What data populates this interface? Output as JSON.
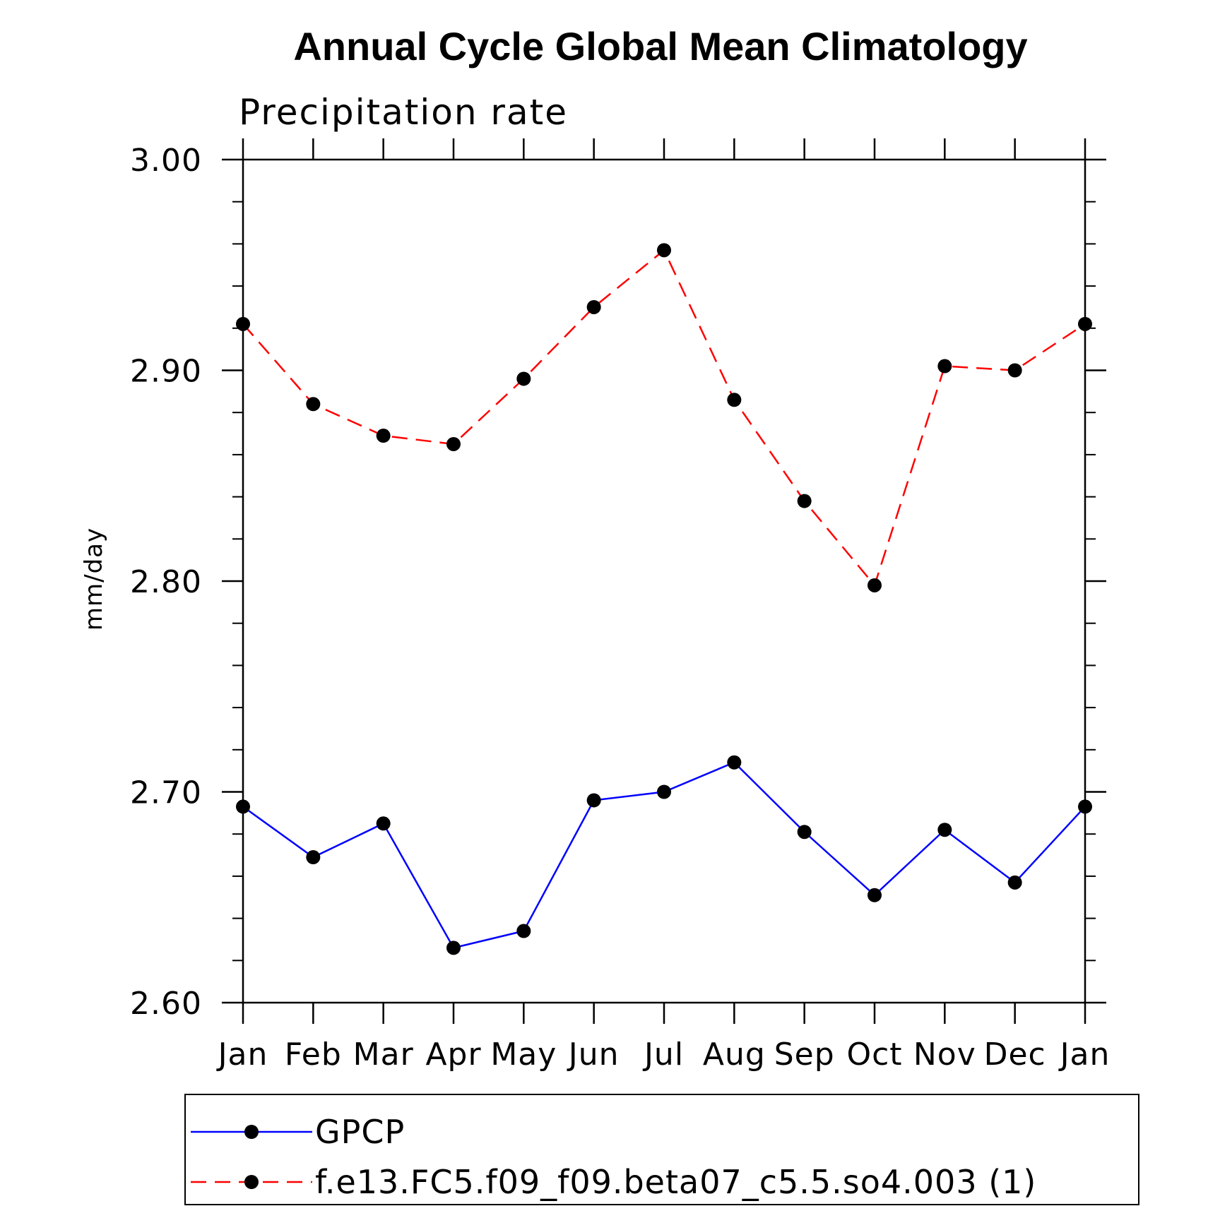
{
  "chart_data": {
    "type": "line",
    "title": "Annual Cycle Global Mean Climatology",
    "subtitle": "Precipitation rate",
    "xlabel": "",
    "ylabel": "mm/day",
    "categories": [
      "Jan",
      "Feb",
      "Mar",
      "Apr",
      "May",
      "Jun",
      "Jul",
      "Aug",
      "Sep",
      "Oct",
      "Nov",
      "Dec",
      "Jan"
    ],
    "ylim": [
      2.6,
      3.0
    ],
    "ytick_labels": [
      "2.60",
      "2.70",
      "2.80",
      "2.90",
      "3.00"
    ],
    "ytick_values": [
      2.6,
      2.7,
      2.8,
      2.9,
      3.0
    ],
    "yminor_step": 0.02,
    "grid": false,
    "legend_position": "bottom",
    "series": [
      {
        "name": "GPCP",
        "color": "#0000ff",
        "line_style": "solid",
        "marker": "dot",
        "values": [
          2.693,
          2.669,
          2.685,
          2.626,
          2.634,
          2.696,
          2.7,
          2.714,
          2.681,
          2.651,
          2.682,
          2.657,
          2.693
        ]
      },
      {
        "name": "f.e13.FC5.f09_f09.beta07_c5.5.so4.003 (1)",
        "color": "#ff0000",
        "line_style": "dashed",
        "marker": "dot",
        "values": [
          2.922,
          2.884,
          2.869,
          2.865,
          2.896,
          2.93,
          2.957,
          2.886,
          2.838,
          2.798,
          2.902,
          2.9,
          2.922
        ]
      }
    ]
  }
}
